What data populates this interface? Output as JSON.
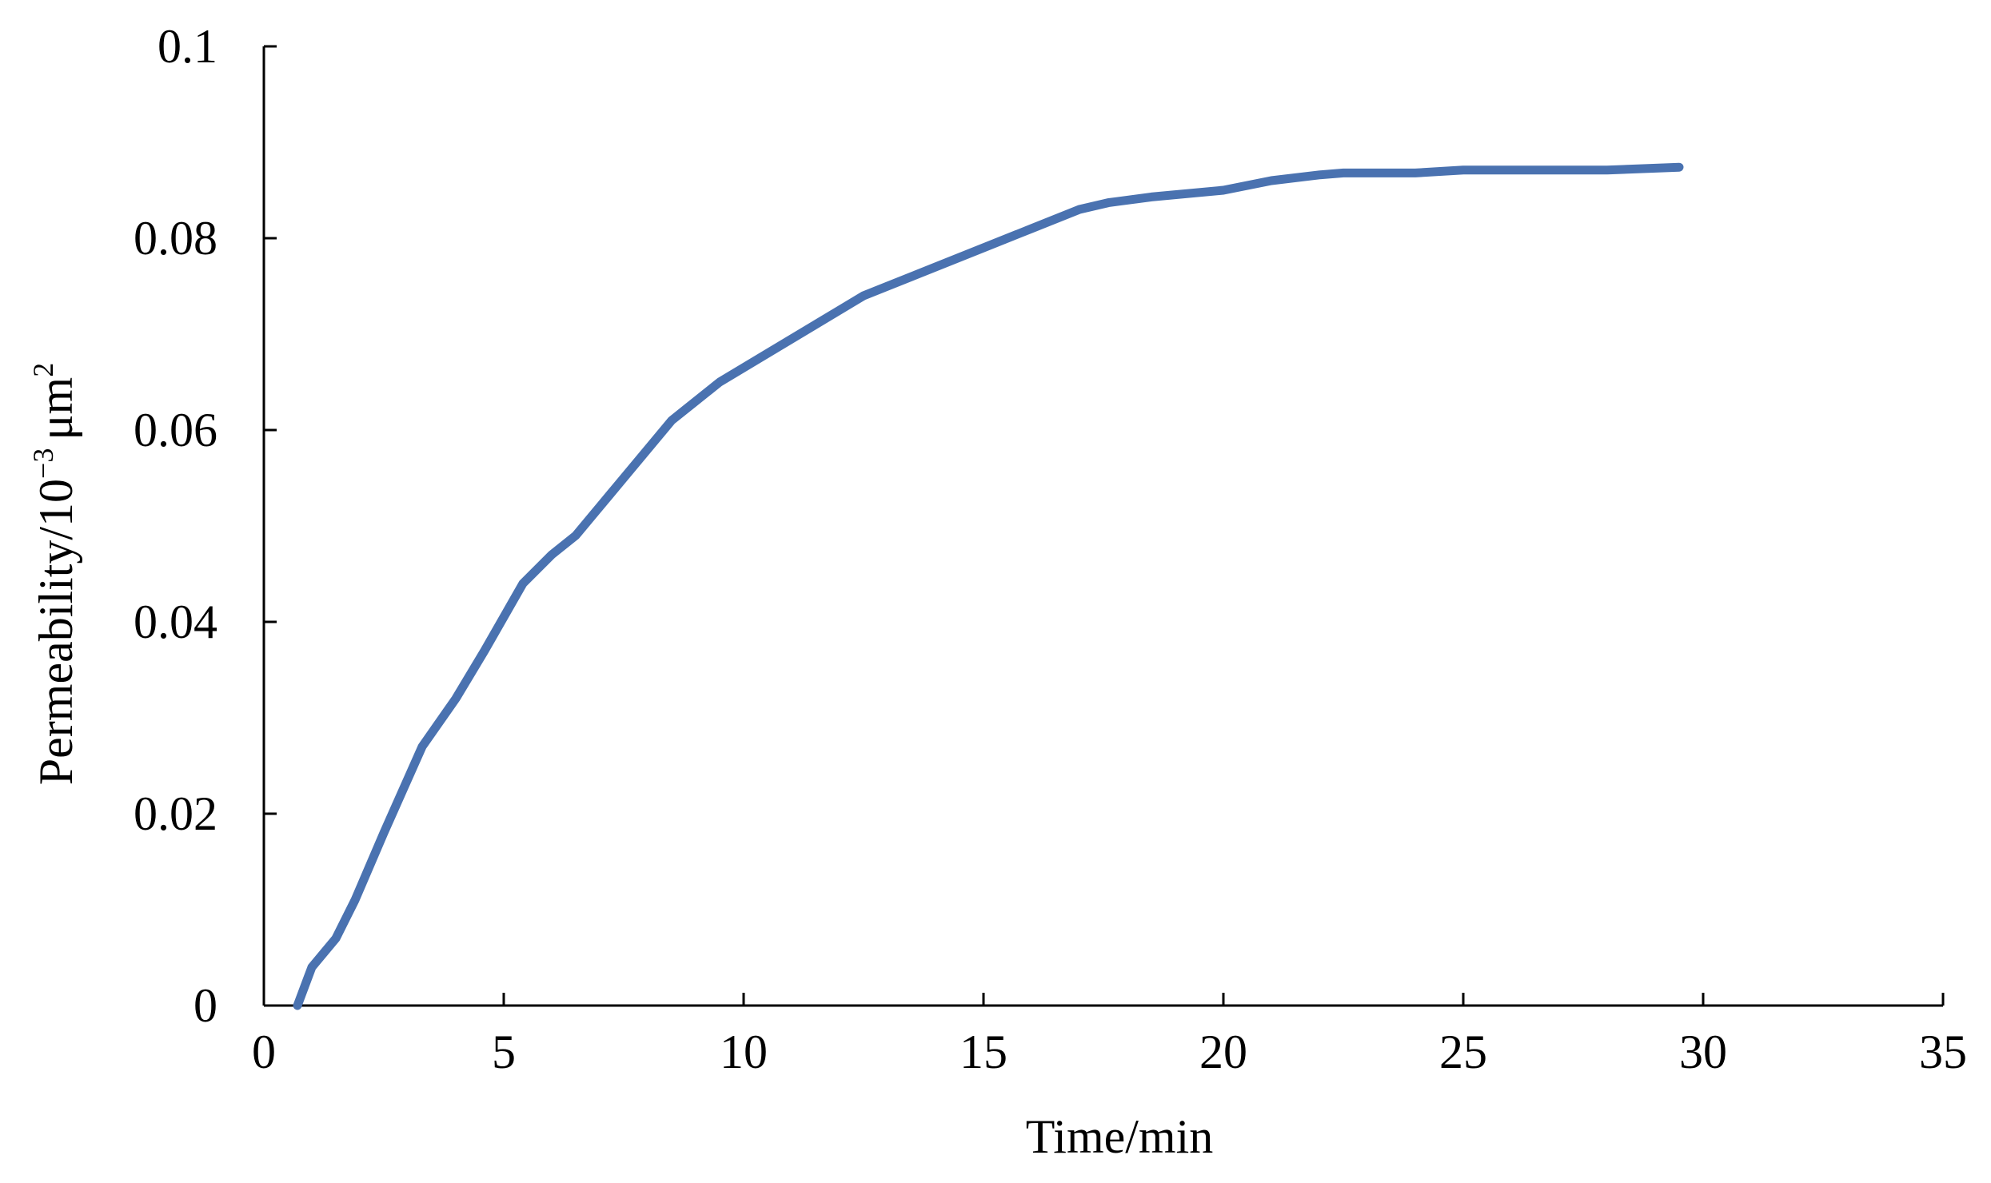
{
  "chart_data": {
    "type": "line",
    "xlabel": "Time/min",
    "ylabel": {
      "prefix": "Permeability/10",
      "exponent": "−3",
      "unit": "μm",
      "unit_exponent": "2"
    },
    "xlim": [
      0,
      35
    ],
    "ylim": [
      0,
      0.1
    ],
    "x_ticks": [
      0,
      5,
      10,
      15,
      20,
      25,
      30,
      35
    ],
    "x_tick_labels": [
      "0",
      "5",
      "10",
      "15",
      "20",
      "25",
      "30",
      "35"
    ],
    "y_ticks": [
      0,
      0.02,
      0.04,
      0.06,
      0.08,
      0.1
    ],
    "y_tick_labels": [
      "0",
      "0.02",
      "0.04",
      "0.06",
      "0.08",
      "0.1"
    ],
    "grid": false,
    "legend": "none",
    "series": [
      {
        "color": "#4a72b0",
        "x": [
          0.7,
          1.0,
          1.5,
          1.9,
          2.5,
          3.3,
          4.0,
          4.6,
          5.4,
          6.0,
          6.5,
          7.0,
          7.5,
          8.5,
          9.5,
          10.5,
          11.5,
          12.5,
          13.0,
          14.0,
          15.0,
          16.0,
          17.0,
          17.6,
          18.5,
          20.0,
          21.0,
          22.0,
          22.5,
          24.0,
          25.0,
          26.5,
          28.0,
          29.5
        ],
        "y": [
          0.0,
          0.004,
          0.007,
          0.011,
          0.018,
          0.027,
          0.032,
          0.037,
          0.044,
          0.047,
          0.049,
          0.052,
          0.055,
          0.061,
          0.065,
          0.068,
          0.071,
          0.074,
          0.075,
          0.077,
          0.079,
          0.081,
          0.083,
          0.0837,
          0.0843,
          0.085,
          0.086,
          0.0866,
          0.0868,
          0.0868,
          0.0871,
          0.0871,
          0.0871,
          0.0874
        ]
      }
    ]
  }
}
